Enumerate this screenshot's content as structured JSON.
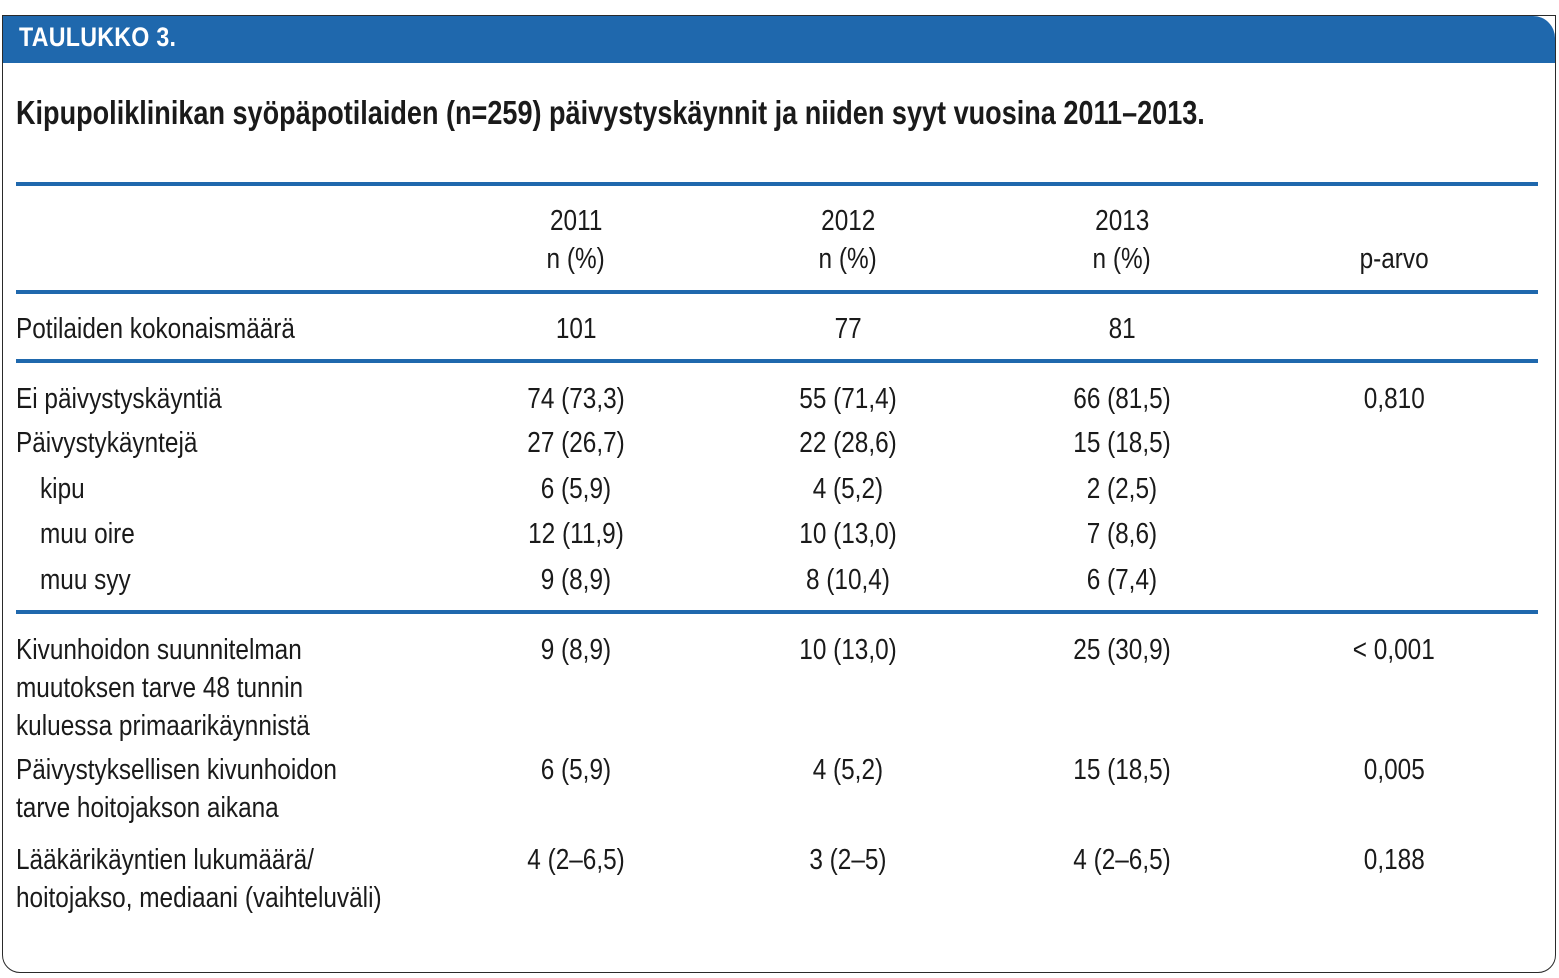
{
  "label": "TAULUKKO 3.",
  "caption": "Kipupoliklinikan syöpäpotilaiden (n=259) päivystyskäynnit ja niiden syyt vuosina 2011–2013.",
  "colors": {
    "accent": "#1f68ad",
    "text": "#1a1a1a",
    "border": "#2a2a2a"
  },
  "table": {
    "headers": [
      {
        "year": "2011",
        "unit": "n (%)"
      },
      {
        "year": "2012",
        "unit": "n (%)"
      },
      {
        "year": "2013",
        "unit": "n (%)"
      },
      {
        "year": "",
        "unit": "p-arvo"
      }
    ],
    "rows": [
      {
        "label": [
          "Potilaiden kokonaismäärä"
        ],
        "indent": false,
        "v2011": "101",
        "v2012": "77",
        "v2013": "81",
        "p": ""
      },
      {
        "label": [
          "Ei päivystyskäyntiä"
        ],
        "indent": false,
        "v2011": "74 (73,3)",
        "v2012": "55 (71,4)",
        "v2013": "66 (81,5)",
        "p": "0,810"
      },
      {
        "label": [
          "Päivystykäyntejä"
        ],
        "indent": false,
        "v2011": "27 (26,7)",
        "v2012": "22 (28,6)",
        "v2013": "15 (18,5)",
        "p": ""
      },
      {
        "label": [
          "kipu"
        ],
        "indent": true,
        "v2011": "6 (5,9)",
        "v2012": "4 (5,2)",
        "v2013": "2 (2,5)",
        "p": ""
      },
      {
        "label": [
          "muu oire"
        ],
        "indent": true,
        "v2011": "12 (11,9)",
        "v2012": "10 (13,0)",
        "v2013": "7 (8,6)",
        "p": ""
      },
      {
        "label": [
          "muu syy"
        ],
        "indent": true,
        "v2011": "9 (8,9)",
        "v2012": "8 (10,4)",
        "v2013": "6 (7,4)",
        "p": ""
      },
      {
        "label": [
          "Kivunhoidon suunnitelman",
          "muutoksen tarve 48 tunnin",
          "kuluessa primaarikäynnistä"
        ],
        "indent": false,
        "v2011": "9 (8,9)",
        "v2012": "10 (13,0)",
        "v2013": "25 (30,9)",
        "p": "< 0,001"
      },
      {
        "label": [
          "Päivystyksellisen kivunhoidon",
          "tarve hoitojakson aikana"
        ],
        "indent": false,
        "v2011": "6 (5,9)",
        "v2012": "4 (5,2)",
        "v2013": "15 (18,5)",
        "p": "0,005"
      },
      {
        "label": [
          "Lääkärikäyntien lukumäärä/",
          "hoitojakso, mediaani (vaihteluväli)"
        ],
        "indent": false,
        "v2011": "4 (2–6,5)",
        "v2012": "3 (2–5)",
        "v2013": "4 (2–6,5)",
        "p": "0,188"
      }
    ]
  }
}
